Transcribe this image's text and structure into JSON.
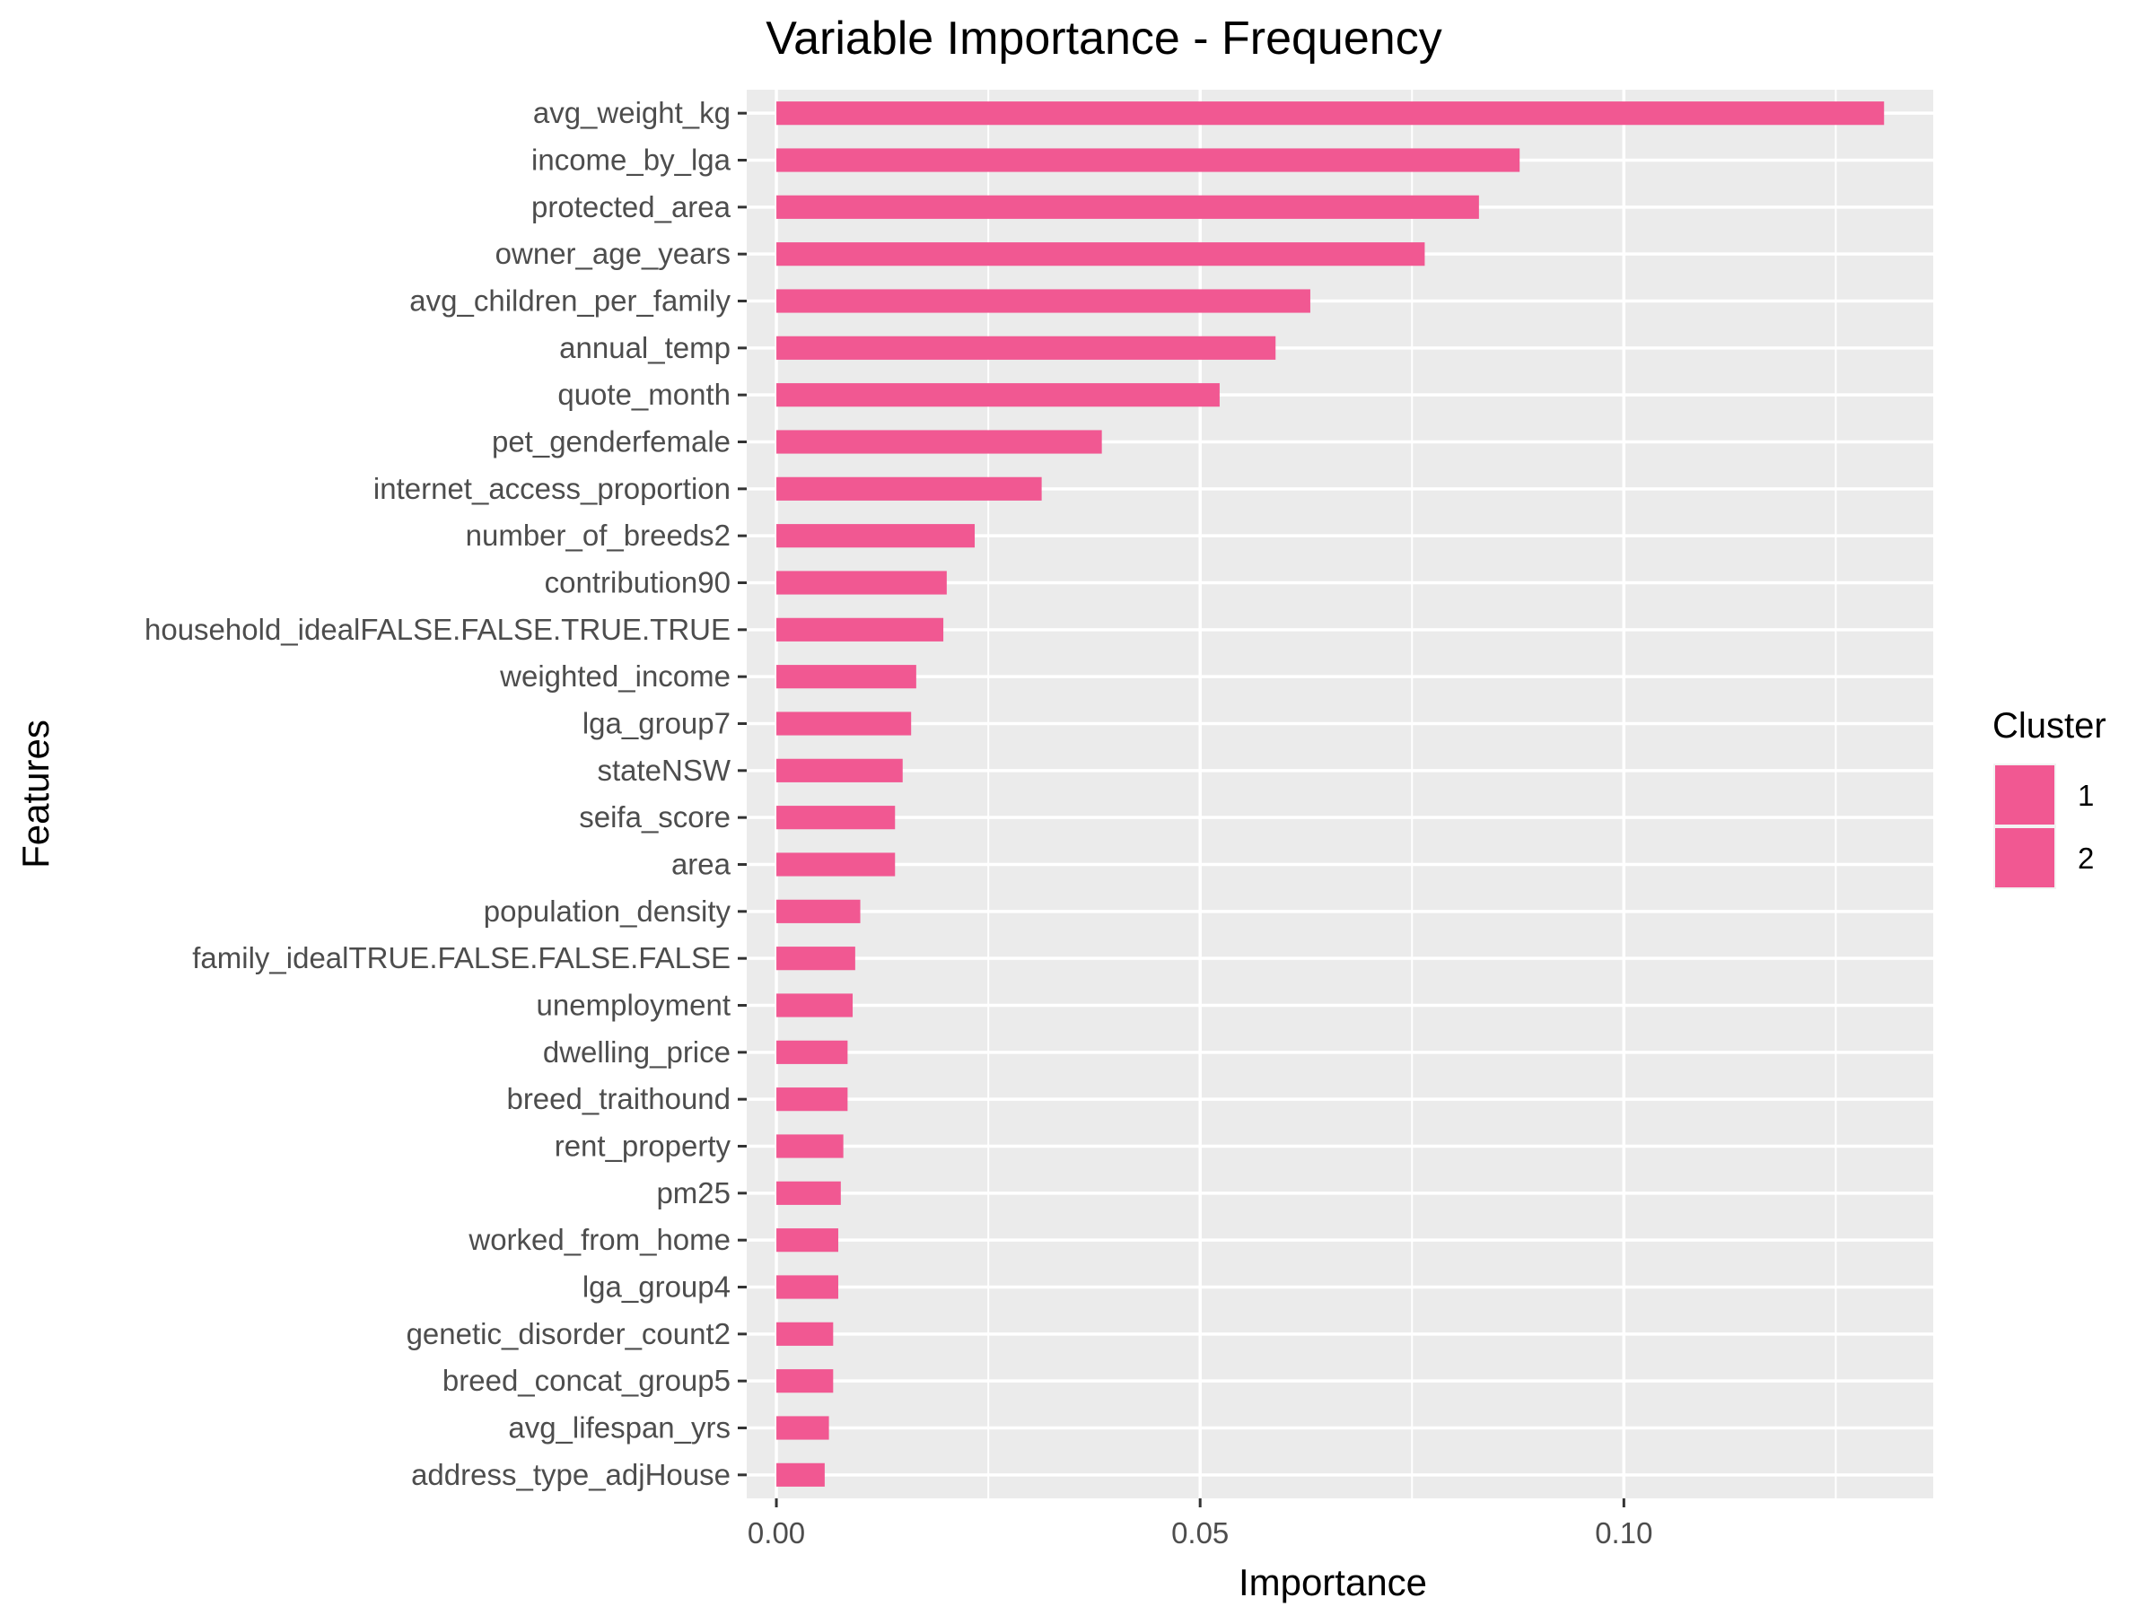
{
  "chart_data": {
    "type": "bar",
    "orientation": "horizontal",
    "title": "Variable Importance - Frequency",
    "xlabel": "Importance",
    "ylabel": "Features",
    "xlim": [
      -0.0035,
      0.1365
    ],
    "x_ticks": [
      0.0,
      0.05,
      0.1
    ],
    "x_tick_labels": [
      "0.00",
      "0.05",
      "0.10"
    ],
    "grid": true,
    "legend": {
      "title": "Cluster",
      "placement": "right",
      "entries": [
        {
          "label": "1",
          "color": "#F15892"
        },
        {
          "label": "2",
          "color": "#F15892"
        }
      ]
    },
    "bar_color": "#F15892",
    "panel_background": "#EBEBEB",
    "categories": [
      "avg_weight_kg",
      "income_by_lga",
      "protected_area",
      "owner_age_years",
      "avg_children_per_family",
      "annual_temp",
      "quote_month",
      "pet_genderfemale",
      "internet_access_proportion",
      "number_of_breeds2",
      "contribution90",
      "household_idealFALSE.FALSE.TRUE.TRUE",
      "weighted_income",
      "lga_group7",
      "stateNSW",
      "seifa_score",
      "area",
      "population_density",
      "family_idealTRUE.FALSE.FALSE.FALSE",
      "unemployment",
      "dwelling_price",
      "breed_traithound",
      "rent_property",
      "pm25",
      "worked_from_home",
      "lga_group4",
      "genetic_disorder_count2",
      "breed_concat_group5",
      "avg_lifespan_yrs",
      "address_type_adjHouse"
    ],
    "values": [
      0.1307,
      0.0877,
      0.0829,
      0.0765,
      0.063,
      0.0589,
      0.0523,
      0.0384,
      0.0313,
      0.0234,
      0.0201,
      0.0197,
      0.0165,
      0.0159,
      0.0149,
      0.014,
      0.014,
      0.0099,
      0.0093,
      0.009,
      0.0084,
      0.0084,
      0.0079,
      0.0076,
      0.0073,
      0.0073,
      0.0067,
      0.0067,
      0.0062,
      0.0057
    ]
  }
}
